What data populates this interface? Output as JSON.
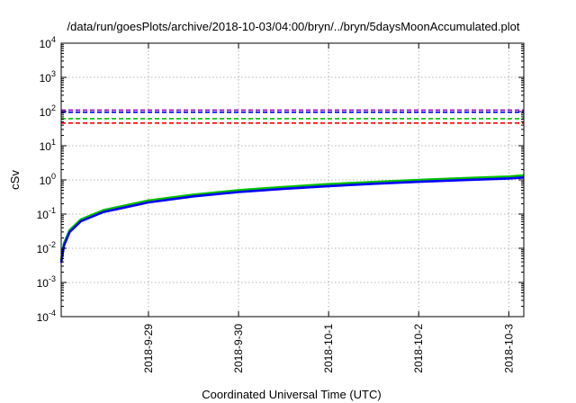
{
  "chart_data": {
    "type": "line",
    "title": "/data/run/goesPlots/archive/2018-10-03/04:00/bryn/../bryn/5daysMoonAccumulated.plot",
    "xlabel": "Coordinated Universal Time (UTC)",
    "ylabel": "cSv",
    "yscale": "log",
    "ylim_exp": [
      -4,
      4
    ],
    "ytick_exponents": [
      "-4",
      "-3",
      "-2",
      "-1",
      "0",
      "1",
      "2",
      "3",
      "4"
    ],
    "ytick_base": "10",
    "xlim_days": [
      "2018-09-28 00:45",
      "2018-10-03 04:00"
    ],
    "xticks": [
      {
        "label": "2018-9-29",
        "day": "2018-09-29"
      },
      {
        "label": "2018-9-30",
        "day": "2018-09-30"
      },
      {
        "label": "2018-10-1",
        "day": "2018-10-01"
      },
      {
        "label": "2018-10-2",
        "day": "2018-10-02"
      },
      {
        "label": "2018-10-3",
        "day": "2018-10-03"
      }
    ],
    "grid": true,
    "thresholds": [
      {
        "value": 110,
        "color": "#9400d3"
      },
      {
        "value": 95,
        "color": "#0000ff"
      },
      {
        "value": 62,
        "color": "#00c000"
      },
      {
        "value": 46,
        "color": "#ff0000"
      }
    ],
    "series": [
      {
        "color": "#00c000",
        "x": [
          "2018-09-28 00:45",
          "2018-09-28 01:30",
          "2018-09-28 03:00",
          "2018-09-28 06:00",
          "2018-09-28 12:00",
          "2018-09-29 00:00",
          "2018-09-29 12:00",
          "2018-09-30 00:00",
          "2018-09-30 12:00",
          "2018-10-01 00:00",
          "2018-10-01 12:00",
          "2018-10-02 00:00",
          "2018-10-02 12:00",
          "2018-10-03 00:00",
          "2018-10-03 04:00"
        ],
        "y": [
          0.0045,
          0.014,
          0.034,
          0.07,
          0.13,
          0.25,
          0.37,
          0.5,
          0.62,
          0.75,
          0.87,
          1.0,
          1.12,
          1.25,
          1.36
        ]
      },
      {
        "color": "#0000ff",
        "x": [
          "2018-09-28 00:45",
          "2018-09-28 01:30",
          "2018-09-28 03:00",
          "2018-09-28 06:00",
          "2018-09-28 12:00",
          "2018-09-29 00:00",
          "2018-09-29 12:00",
          "2018-09-30 00:00",
          "2018-09-30 12:00",
          "2018-10-01 00:00",
          "2018-10-01 12:00",
          "2018-10-02 00:00",
          "2018-10-02 12:00",
          "2018-10-03 00:00",
          "2018-10-03 04:00"
        ],
        "y": [
          0.0038,
          0.012,
          0.03,
          0.062,
          0.115,
          0.22,
          0.33,
          0.44,
          0.55,
          0.66,
          0.77,
          0.88,
          0.99,
          1.1,
          1.18
        ]
      }
    ]
  }
}
